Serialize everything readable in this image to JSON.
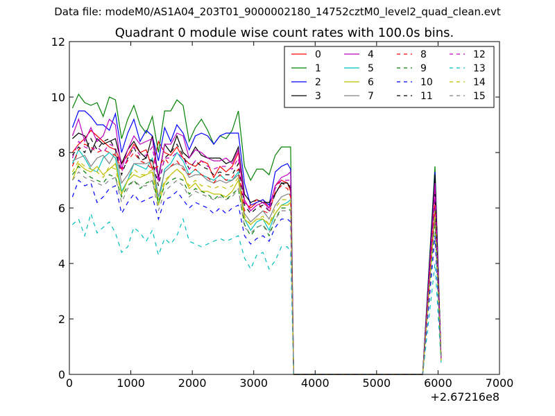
{
  "suptitle": "Data file: modeM0/AS1A04_203T01_9000002180_14752cztM0_level2_quad_clean.evt",
  "chart_data": {
    "type": "line",
    "title": "Quadrant 0 module wise count rates with 100.0s bins.",
    "xlabel": "",
    "ylabel": "",
    "xlim": [
      0,
      7000
    ],
    "ylim": [
      0,
      12
    ],
    "x_offset_label": "+2.67216e8",
    "x_ticks": [
      "0",
      "1000",
      "2000",
      "3000",
      "4000",
      "5000",
      "6000",
      "7000"
    ],
    "y_ticks": [
      "0",
      "2",
      "4",
      "6",
      "8",
      "10",
      "12"
    ],
    "grid": false,
    "legend": {
      "placement": "top-right",
      "columns": 4
    },
    "x_segment_1": [
      50,
      150,
      250,
      350,
      450,
      550,
      650,
      750,
      850,
      950,
      1050,
      1150,
      1250,
      1350,
      1450,
      1550,
      1650,
      1750,
      1850,
      1950,
      2050,
      2150,
      2250,
      2350,
      2450,
      2550,
      2650,
      2750,
      2850,
      2950,
      3050,
      3150,
      3250,
      3350,
      3450,
      3550,
      3600
    ],
    "x_segment_2": [
      3650,
      5750,
      5950,
      6050
    ],
    "series": [
      {
        "name": "0",
        "color": "#ff0000",
        "dash": false,
        "values": [
          8.0,
          8.3,
          8.5,
          8.8,
          8.6,
          8.4,
          8.2,
          8.1,
          7.6,
          7.9,
          8.3,
          8.0,
          8.1,
          7.4,
          8.4,
          8.0,
          7.9,
          8.2,
          7.8,
          7.6,
          7.5,
          7.7,
          7.6,
          7.1,
          7.5,
          7.3,
          7.5,
          8.0,
          6.2,
          6.0,
          6.2,
          6.3,
          6.0,
          6.8,
          7.0,
          6.9,
          6.6
        ],
        "tail": [
          0.0,
          0.0,
          6.8,
          0.5
        ]
      },
      {
        "name": "1",
        "color": "#008000",
        "dash": false,
        "values": [
          9.6,
          10.1,
          9.8,
          9.7,
          9.8,
          9.3,
          10.0,
          9.9,
          8.5,
          9.2,
          9.7,
          9.0,
          8.7,
          9.3,
          8.0,
          9.5,
          9.5,
          9.9,
          9.7,
          8.4,
          8.9,
          9.2,
          8.8,
          8.3,
          8.6,
          8.5,
          8.8,
          9.5,
          7.5,
          7.0,
          7.4,
          7.4,
          7.2,
          7.9,
          8.2,
          8.2,
          8.2
        ],
        "tail": [
          0.0,
          0.0,
          7.5,
          0.5
        ]
      },
      {
        "name": "2",
        "color": "#0000ff",
        "dash": false,
        "values": [
          8.9,
          9.5,
          9.5,
          9.3,
          9.0,
          9.0,
          8.8,
          9.4,
          8.0,
          8.7,
          9.2,
          8.4,
          8.8,
          8.6,
          7.7,
          8.9,
          8.4,
          9.0,
          8.7,
          8.1,
          8.6,
          8.7,
          8.6,
          8.3,
          8.6,
          8.7,
          8.7,
          8.7,
          6.9,
          6.1,
          6.2,
          6.3,
          6.1,
          7.3,
          7.5,
          7.6,
          7.4
        ],
        "tail": [
          0.0,
          0.0,
          7.3,
          0.5
        ]
      },
      {
        "name": "3",
        "color": "#000000",
        "dash": false,
        "values": [
          8.5,
          8.7,
          8.6,
          8.0,
          8.5,
          8.3,
          8.4,
          8.5,
          7.6,
          8.1,
          8.4,
          8.0,
          7.8,
          8.6,
          7.1,
          8.3,
          8.0,
          8.6,
          8.0,
          7.8,
          8.2,
          7.9,
          7.8,
          7.8,
          7.8,
          7.6,
          7.7,
          8.2,
          6.5,
          6.2,
          6.3,
          6.2,
          6.2,
          6.5,
          6.9,
          6.9,
          6.7
        ],
        "tail": [
          0.0,
          0.0,
          7.2,
          0.5
        ]
      },
      {
        "name": "4",
        "color": "#bf00bf",
        "dash": false,
        "values": [
          8.6,
          9.2,
          8.4,
          8.9,
          8.4,
          8.6,
          9.2,
          9.0,
          7.4,
          8.1,
          8.6,
          8.3,
          8.4,
          8.5,
          7.0,
          8.3,
          8.3,
          8.7,
          8.6,
          7.8,
          8.1,
          8.0,
          7.8,
          7.7,
          7.7,
          7.8,
          7.6,
          8.1,
          6.3,
          5.9,
          6.1,
          6.2,
          6.0,
          6.8,
          7.1,
          7.2,
          7.3
        ],
        "tail": [
          0.0,
          0.0,
          6.9,
          0.5
        ]
      },
      {
        "name": "5",
        "color": "#00bfbf",
        "dash": false,
        "values": [
          7.6,
          8.1,
          7.8,
          7.4,
          7.3,
          7.8,
          8.0,
          7.8,
          6.6,
          7.0,
          7.6,
          7.5,
          7.4,
          7.8,
          6.1,
          7.4,
          7.6,
          8.0,
          7.7,
          7.2,
          7.4,
          7.2,
          7.1,
          7.0,
          7.2,
          7.0,
          7.0,
          7.3,
          5.6,
          5.2,
          5.5,
          5.6,
          5.2,
          5.8,
          6.1,
          6.2,
          6.3
        ],
        "tail": [
          0.0,
          0.0,
          6.0,
          0.5
        ]
      },
      {
        "name": "6",
        "color": "#bfbf00",
        "dash": false,
        "values": [
          7.0,
          7.6,
          7.4,
          7.3,
          7.5,
          7.2,
          7.4,
          7.6,
          6.5,
          7.0,
          7.2,
          7.1,
          7.2,
          7.3,
          6.1,
          6.9,
          7.2,
          7.4,
          7.2,
          6.7,
          6.9,
          6.6,
          6.6,
          6.5,
          6.5,
          6.4,
          6.6,
          7.0,
          5.6,
          5.4,
          5.6,
          5.6,
          5.4,
          5.8,
          6.1,
          6.1,
          6.2
        ],
        "tail": [
          0.0,
          0.0,
          5.8,
          0.5
        ]
      },
      {
        "name": "7",
        "color": "#808080",
        "dash": false,
        "values": [
          7.7,
          7.8,
          7.9,
          7.5,
          7.8,
          7.9,
          7.6,
          8.0,
          6.9,
          7.2,
          7.6,
          7.6,
          7.6,
          7.7,
          6.4,
          7.3,
          7.5,
          7.6,
          7.5,
          7.1,
          7.2,
          7.2,
          7.0,
          6.9,
          7.0,
          6.9,
          7.0,
          7.2,
          5.8,
          5.5,
          5.7,
          5.9,
          5.6,
          6.1,
          6.4,
          6.5,
          6.5
        ],
        "tail": [
          0.0,
          0.0,
          6.1,
          0.5
        ]
      },
      {
        "name": "8",
        "color": "#ff0000",
        "dash": true,
        "values": [
          7.5,
          8.1,
          8.3,
          8.2,
          8.0,
          8.1,
          8.0,
          7.9,
          7.4,
          7.7,
          8.0,
          7.7,
          7.6,
          7.4,
          7.5,
          7.8,
          7.5,
          7.7,
          7.4,
          7.2,
          7.4,
          7.2,
          7.1,
          6.9,
          7.2,
          7.0,
          7.1,
          7.4,
          5.9,
          6.1,
          6.3,
          5.9,
          5.8,
          6.6,
          6.8,
          6.7,
          6.4
        ],
        "tail": [
          0.0,
          0.0,
          6.2,
          0.5
        ]
      },
      {
        "name": "9",
        "color": "#008000",
        "dash": true,
        "values": [
          7.2,
          7.5,
          7.3,
          7.1,
          7.0,
          6.9,
          7.2,
          7.1,
          6.4,
          6.8,
          7.0,
          6.7,
          6.9,
          7.0,
          6.2,
          6.8,
          7.0,
          7.1,
          7.0,
          6.5,
          6.7,
          6.6,
          6.5,
          6.3,
          6.5,
          6.3,
          6.5,
          6.7,
          5.4,
          5.0,
          5.3,
          5.4,
          5.0,
          5.6,
          6.0,
          6.0,
          5.9
        ],
        "tail": [
          0.0,
          0.0,
          5.5,
          0.5
        ]
      },
      {
        "name": "10",
        "color": "#0000ff",
        "dash": true,
        "values": [
          6.4,
          7.0,
          6.8,
          6.9,
          6.2,
          6.4,
          6.7,
          6.8,
          5.8,
          6.2,
          6.5,
          6.2,
          6.3,
          6.4,
          5.6,
          6.3,
          6.4,
          6.6,
          6.3,
          6.0,
          6.2,
          6.1,
          6.0,
          5.8,
          6.0,
          5.8,
          6.0,
          6.1,
          5.0,
          4.7,
          4.9,
          5.0,
          4.8,
          5.3,
          5.6,
          5.6,
          5.5
        ],
        "tail": [
          0.0,
          0.0,
          5.0,
          0.5
        ]
      },
      {
        "name": "11",
        "color": "#000000",
        "dash": true,
        "values": [
          7.9,
          8.2,
          8.0,
          8.5,
          8.1,
          8.4,
          8.5,
          8.1,
          7.2,
          7.8,
          8.2,
          7.7,
          7.8,
          7.7,
          6.8,
          7.8,
          8.0,
          8.3,
          7.9,
          7.4,
          7.7,
          7.5,
          7.4,
          7.2,
          7.3,
          7.2,
          7.2,
          7.6,
          6.1,
          5.8,
          6.0,
          6.1,
          5.9,
          6.5,
          6.9,
          6.8,
          6.8
        ],
        "tail": [
          0.0,
          0.0,
          6.5,
          0.5
        ]
      },
      {
        "name": "12",
        "color": "#bf00bf",
        "dash": true,
        "values": [
          7.8,
          8.4,
          8.2,
          8.1,
          8.2,
          8.0,
          8.3,
          8.2,
          7.3,
          7.8,
          8.2,
          7.9,
          7.9,
          8.2,
          6.9,
          7.8,
          7.8,
          8.0,
          7.8,
          7.4,
          7.7,
          7.7,
          7.5,
          7.4,
          7.5,
          7.5,
          7.4,
          7.8,
          6.2,
          5.9,
          6.1,
          6.2,
          5.9,
          6.7,
          7.0,
          7.0,
          7.0
        ],
        "tail": [
          0.0,
          0.0,
          6.4,
          0.5
        ]
      },
      {
        "name": "13",
        "color": "#00bfbf",
        "dash": true,
        "values": [
          5.4,
          5.6,
          5.0,
          5.8,
          5.1,
          5.3,
          5.5,
          5.1,
          4.4,
          4.6,
          5.3,
          5.1,
          4.8,
          5.2,
          4.3,
          4.9,
          4.7,
          5.0,
          5.6,
          4.8,
          4.7,
          4.6,
          4.7,
          4.8,
          4.9,
          4.8,
          4.9,
          5.0,
          4.2,
          3.8,
          4.3,
          4.4,
          3.8,
          4.1,
          4.6,
          4.6,
          4.4
        ],
        "tail": [
          0.0,
          0.0,
          4.0,
          0.4
        ]
      },
      {
        "name": "14",
        "color": "#bfbf00",
        "dash": true,
        "values": [
          7.3,
          7.7,
          7.5,
          7.4,
          7.3,
          7.1,
          7.5,
          7.4,
          6.5,
          7.0,
          7.4,
          7.2,
          7.2,
          7.4,
          6.3,
          7.0,
          7.2,
          7.4,
          7.2,
          6.8,
          7.0,
          6.8,
          6.8,
          6.7,
          6.8,
          6.7,
          6.8,
          7.1,
          5.7,
          5.4,
          5.6,
          5.7,
          5.4,
          6.0,
          6.3,
          6.3,
          6.3
        ],
        "tail": [
          0.0,
          0.0,
          5.9,
          0.5
        ]
      },
      {
        "name": "15",
        "color": "#808080",
        "dash": true,
        "values": [
          7.0,
          7.3,
          7.1,
          7.0,
          6.9,
          6.8,
          7.0,
          7.1,
          6.2,
          6.7,
          7.0,
          6.8,
          6.8,
          7.0,
          5.9,
          6.6,
          6.8,
          7.0,
          6.8,
          6.4,
          6.6,
          6.5,
          6.4,
          6.3,
          6.4,
          6.3,
          6.4,
          6.7,
          5.3,
          5.1,
          5.3,
          5.4,
          5.1,
          5.6,
          5.9,
          5.9,
          5.9
        ],
        "tail": [
          0.0,
          0.0,
          5.6,
          0.5
        ]
      }
    ]
  }
}
